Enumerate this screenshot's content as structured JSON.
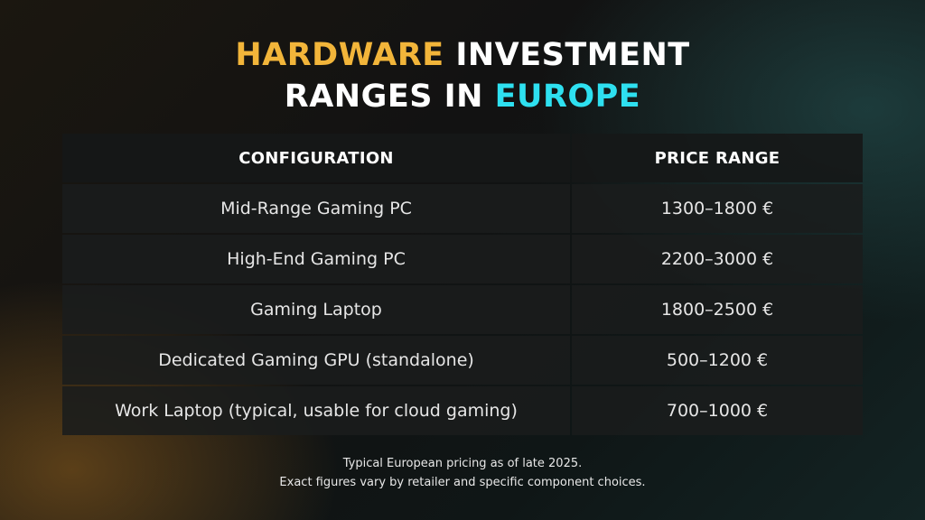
{
  "title": {
    "part1": "HARDWARE",
    "part2": " INVESTMENT",
    "part3": "RANGES IN ",
    "part4": "EUROPE"
  },
  "table": {
    "headers": [
      "CONFIGURATION",
      "PRICE RANGE"
    ],
    "rows": [
      [
        "Mid-Range Gaming PC",
        "1300–1800 €"
      ],
      [
        "High-End Gaming PC",
        "2200–3000 €"
      ],
      [
        "Gaming Laptop",
        "1800–2500 €"
      ],
      [
        "Dedicated Gaming GPU (standalone)",
        "500–1200 €"
      ],
      [
        "Work Laptop (typical, usable for cloud gaming)",
        "700–1000 €"
      ]
    ]
  },
  "footnote": {
    "line1": "Typical European pricing as of late 2025.",
    "line2": "Exact figures vary by retailer and specific component choices."
  },
  "colors": {
    "accent_yellow": "#f2b53a",
    "accent_cyan": "#2ee0f0"
  }
}
